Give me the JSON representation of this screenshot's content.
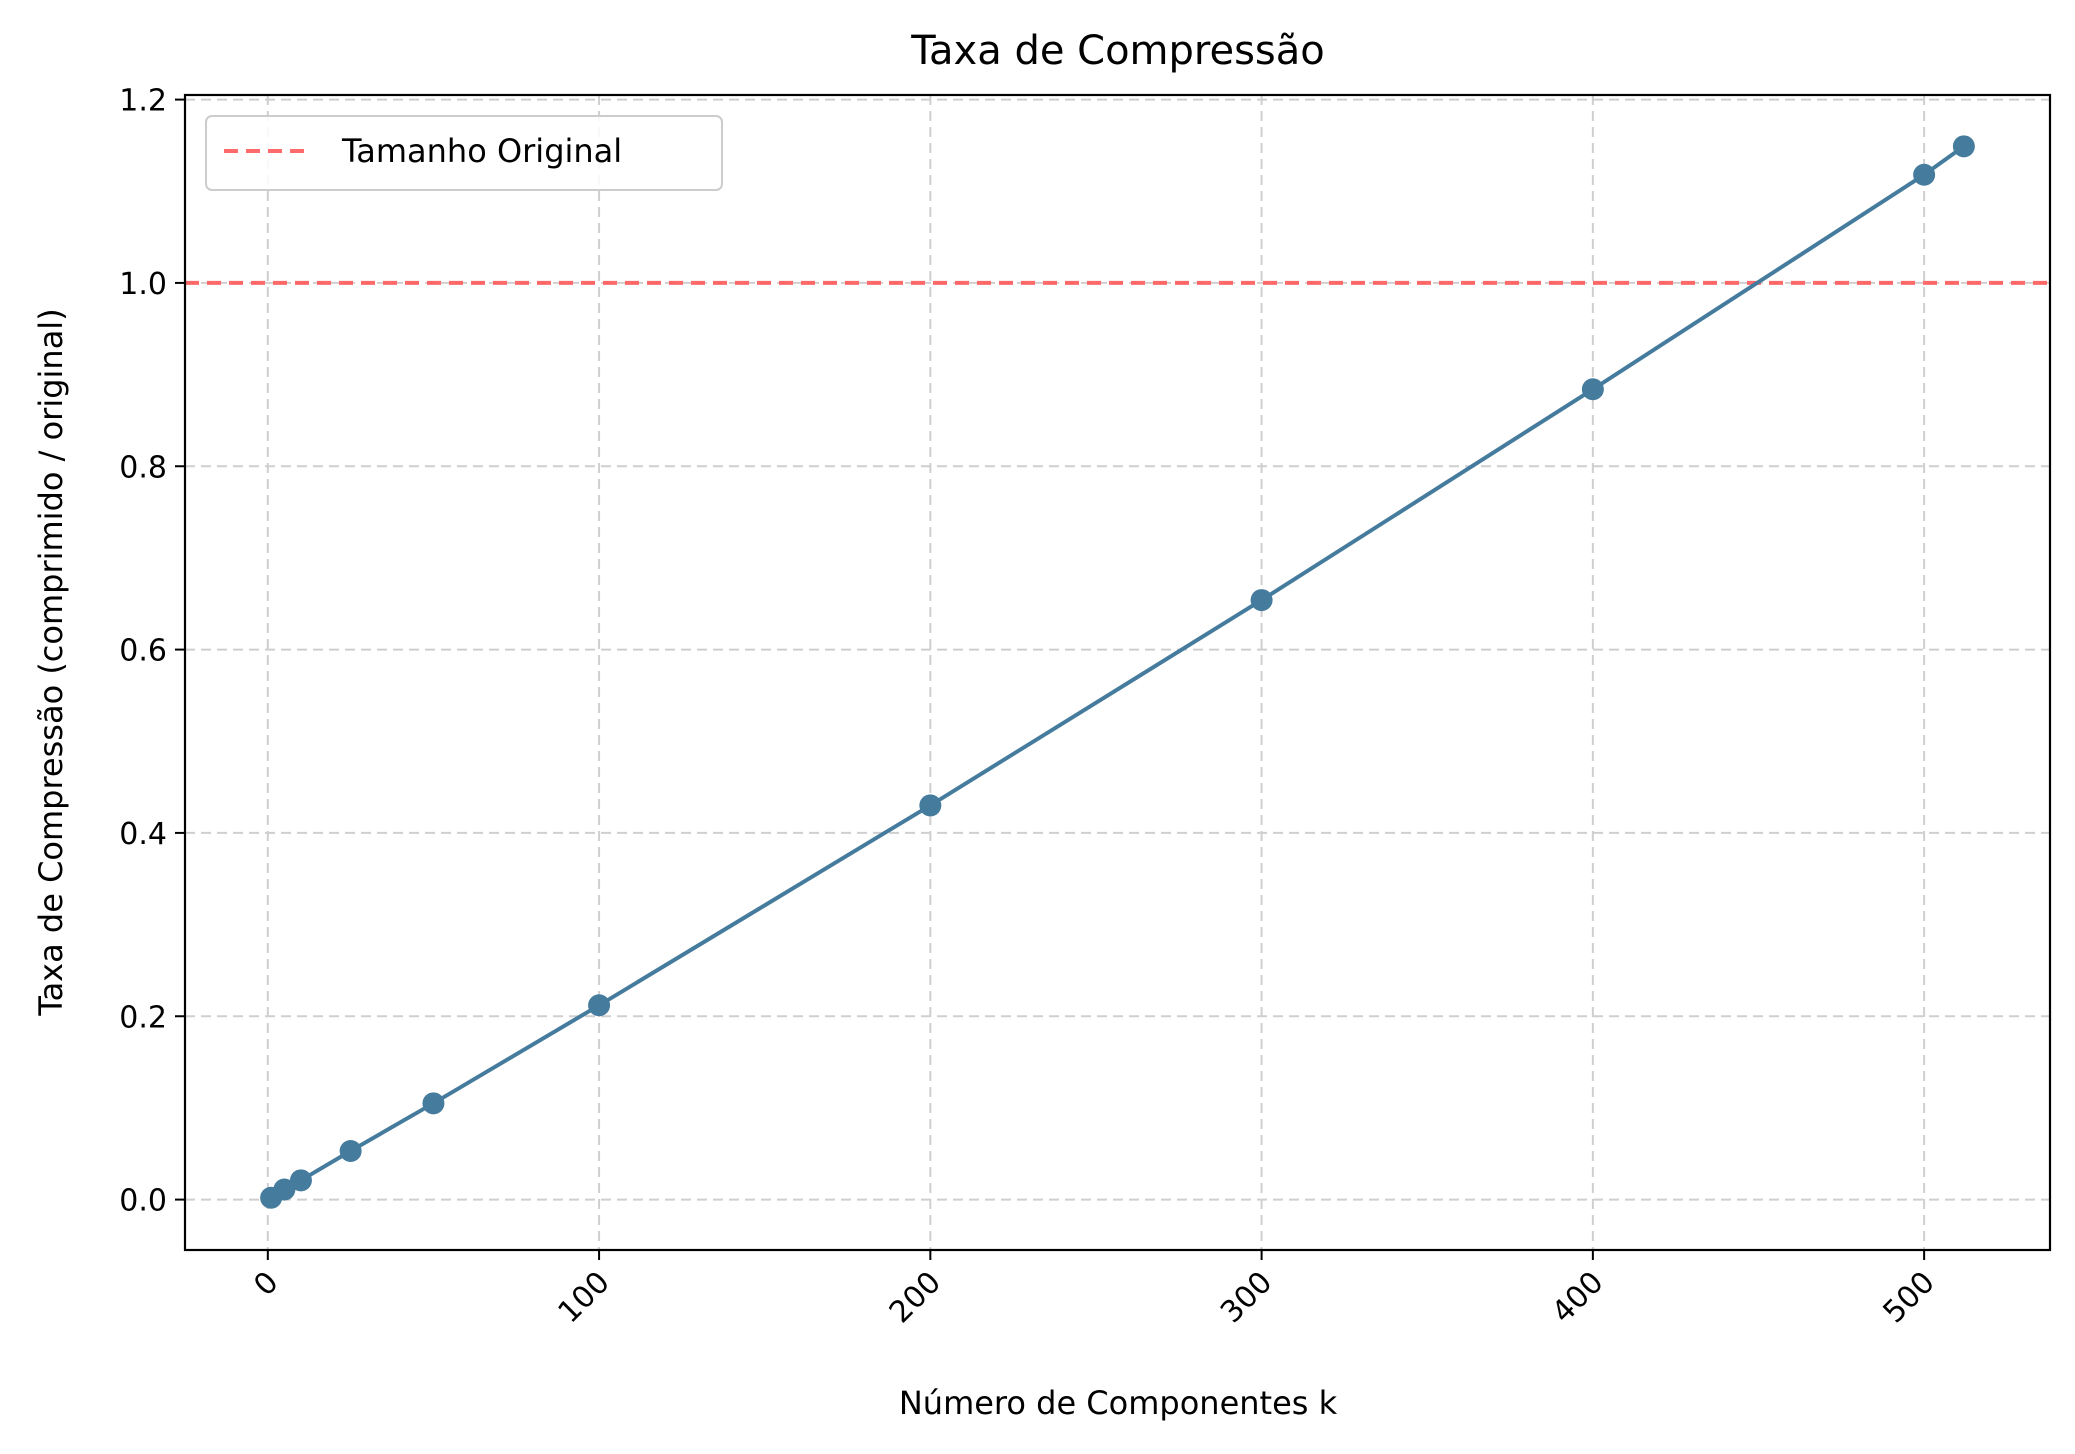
{
  "chart_data": {
    "type": "line",
    "title": "Taxa de Compressão",
    "xlabel": "Número de Componentes k",
    "ylabel": "Taxa de Compressão (comprimido / original)",
    "xlim": [
      -25,
      538
    ],
    "ylim": [
      -0.055,
      1.205
    ],
    "x_ticks": [
      0,
      100,
      200,
      300,
      400,
      500
    ],
    "x_tick_labels": [
      "0",
      "100",
      "200",
      "300",
      "400",
      "500"
    ],
    "x_tick_rotation_deg": -45,
    "y_ticks": [
      0.0,
      0.2,
      0.4,
      0.6,
      0.8,
      1.0,
      1.2
    ],
    "y_tick_labels": [
      "0.0",
      "0.2",
      "0.4",
      "0.6",
      "0.8",
      "1.0",
      "1.2"
    ],
    "grid": true,
    "series": [
      {
        "x": [
          1,
          5,
          10,
          25,
          50,
          100,
          200,
          300,
          400,
          500,
          512
        ],
        "y": [
          0.002,
          0.011,
          0.021,
          0.053,
          0.105,
          0.212,
          0.43,
          0.654,
          0.884,
          1.118,
          1.149
        ],
        "color": "#457b9d",
        "marker": "circle"
      }
    ],
    "reference_line": {
      "y": 1.0,
      "label": "Tamanho Original",
      "color": "#ff5a5a",
      "style": "dashed"
    },
    "legend": {
      "placement": "top-left",
      "entries": [
        "Tamanho Original"
      ]
    }
  }
}
